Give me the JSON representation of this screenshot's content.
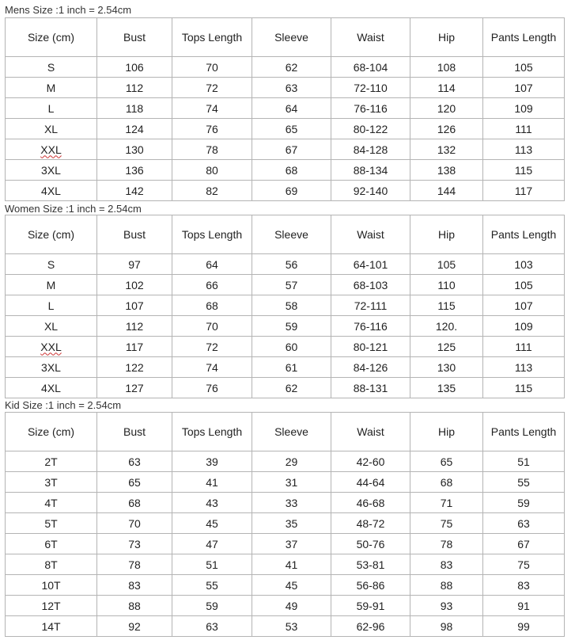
{
  "columns": [
    "Size (cm)",
    "Bust",
    "Tops Length",
    "Sleeve",
    "Waist",
    "Hip",
    "Pants Length"
  ],
  "tables": [
    {
      "title": "Mens Size :1 inch = 2.54cm",
      "rows": [
        [
          "S",
          "106",
          "70",
          "62",
          "68-104",
          "108",
          "105"
        ],
        [
          "M",
          "112",
          "72",
          "63",
          "72-110",
          "114",
          "107"
        ],
        [
          "L",
          "118",
          "74",
          "64",
          "76-116",
          "120",
          "109"
        ],
        [
          "XL",
          "124",
          "76",
          "65",
          "80-122",
          "126",
          "111"
        ],
        [
          "XXL",
          "130",
          "78",
          "67",
          "84-128",
          "132",
          "113"
        ],
        [
          "3XL",
          "136",
          "80",
          "68",
          "88-134",
          "138",
          "115"
        ],
        [
          "4XL",
          "142",
          "82",
          "69",
          "92-140",
          "144",
          "117"
        ]
      ]
    },
    {
      "title": "Women Size :1 inch = 2.54cm",
      "rows": [
        [
          "S",
          "97",
          "64",
          "56",
          "64-101",
          "105",
          "103"
        ],
        [
          "M",
          "102",
          "66",
          "57",
          "68-103",
          "110",
          "105"
        ],
        [
          "L",
          "107",
          "68",
          "58",
          "72-111",
          "115",
          "107"
        ],
        [
          "XL",
          "112",
          "70",
          "59",
          "76-116",
          "120.",
          "109"
        ],
        [
          "XXL",
          "117",
          "72",
          "60",
          "80-121",
          "125",
          "111"
        ],
        [
          "3XL",
          "122",
          "74",
          "61",
          "84-126",
          "130",
          "113"
        ],
        [
          "4XL",
          "127",
          "76",
          "62",
          "88-131",
          "135",
          "115"
        ]
      ]
    },
    {
      "title": "Kid Size :1 inch = 2.54cm",
      "rows": [
        [
          "2T",
          "63",
          "39",
          "29",
          "42-60",
          "65",
          "51"
        ],
        [
          "3T",
          "65",
          "41",
          "31",
          "44-64",
          "68",
          "55"
        ],
        [
          "4T",
          "68",
          "43",
          "33",
          "46-68",
          "71",
          "59"
        ],
        [
          "5T",
          "70",
          "45",
          "35",
          "48-72",
          "75",
          "63"
        ],
        [
          "6T",
          "73",
          "47",
          "37",
          "50-76",
          "78",
          "67"
        ],
        [
          "8T",
          "78",
          "51",
          "41",
          "53-81",
          "83",
          "75"
        ],
        [
          "10T",
          "83",
          "55",
          "45",
          "56-86",
          "88",
          "83"
        ],
        [
          "12T",
          "88",
          "59",
          "49",
          "59-91",
          "93",
          "91"
        ],
        [
          "14T",
          "92",
          "63",
          "53",
          "62-96",
          "98",
          "99"
        ]
      ]
    }
  ]
}
